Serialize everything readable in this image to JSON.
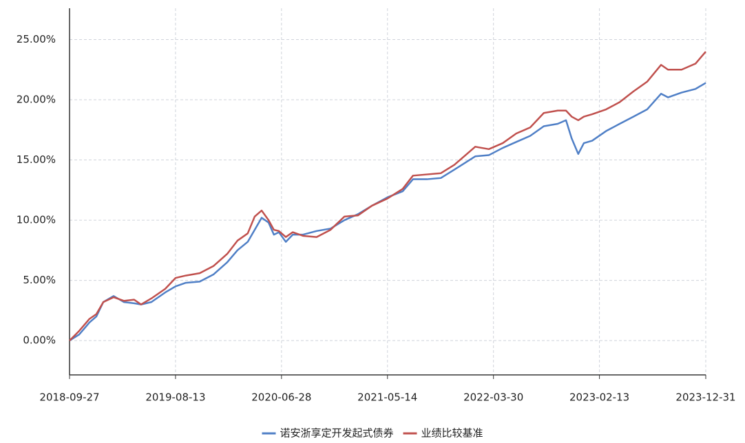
{
  "chart_data": {
    "type": "line",
    "x": [
      "2018-09-27",
      "2018-10-26",
      "2018-11-26",
      "2018-12-17",
      "2019-01-07",
      "2019-02-07",
      "2019-03-10",
      "2019-04-10",
      "2019-05-01",
      "2019-06-01",
      "2019-07-13",
      "2019-08-13",
      "2019-09-13",
      "2019-10-25",
      "2019-12-06",
      "2020-01-16",
      "2020-02-16",
      "2020-03-18",
      "2020-04-08",
      "2020-04-29",
      "2020-05-20",
      "2020-06-05",
      "2020-06-20",
      "2020-07-11",
      "2020-08-01",
      "2020-09-01",
      "2020-10-12",
      "2020-11-23",
      "2021-01-04",
      "2021-02-14",
      "2021-03-28",
      "2021-05-14",
      "2021-06-29",
      "2021-07-30",
      "2021-09-10",
      "2021-10-22",
      "2021-12-02",
      "2022-02-03",
      "2022-03-16",
      "2022-04-27",
      "2022-06-07",
      "2022-07-19",
      "2022-08-29",
      "2022-10-10",
      "2022-11-04",
      "2022-11-21",
      "2022-12-11",
      "2022-12-28",
      "2023-01-22",
      "2023-03-05",
      "2023-04-15",
      "2023-05-27",
      "2023-07-07",
      "2023-08-18",
      "2023-09-08",
      "2023-10-19",
      "2023-11-30",
      "2023-12-31"
    ],
    "series": [
      {
        "name": "诺安浙享定开发起式债券",
        "color": "#4f7fc6",
        "values": [
          0,
          0.5,
          1.5,
          2.0,
          3.2,
          3.7,
          3.2,
          3.1,
          3.0,
          3.2,
          4.0,
          4.5,
          4.8,
          4.9,
          5.5,
          6.5,
          7.5,
          8.2,
          9.2,
          10.2,
          9.8,
          8.8,
          9.0,
          8.2,
          8.8,
          8.8,
          9.1,
          9.3,
          10.0,
          10.5,
          11.2,
          11.9,
          12.4,
          13.4,
          13.4,
          13.5,
          14.2,
          15.3,
          15.4,
          16.0,
          16.5,
          17.0,
          17.8,
          18.0,
          18.3,
          16.8,
          15.5,
          16.4,
          16.6,
          17.4,
          18.0,
          18.6,
          19.2,
          20.5,
          20.2,
          20.6,
          20.9,
          21.4
        ]
      },
      {
        "name": "业绩比较基准",
        "color": "#c0504d",
        "values": [
          0,
          0.8,
          1.8,
          2.2,
          3.2,
          3.6,
          3.3,
          3.4,
          3.0,
          3.5,
          4.3,
          5.2,
          5.4,
          5.6,
          6.2,
          7.2,
          8.3,
          8.9,
          10.3,
          10.8,
          10.0,
          9.2,
          9.1,
          8.6,
          9.0,
          8.7,
          8.6,
          9.2,
          10.3,
          10.4,
          11.2,
          11.8,
          12.6,
          13.7,
          13.8,
          13.9,
          14.6,
          16.1,
          15.9,
          16.4,
          17.2,
          17.7,
          18.9,
          19.1,
          19.1,
          18.6,
          18.3,
          18.6,
          18.8,
          19.2,
          19.8,
          20.7,
          21.5,
          22.9,
          22.5,
          22.5,
          23.0,
          24.0
        ]
      }
    ],
    "xlim": [
      "2018-09-27",
      "2023-12-31"
    ],
    "xticks": [
      "2018-09-27",
      "2019-08-13",
      "2020-06-28",
      "2021-05-14",
      "2022-03-30",
      "2023-02-13",
      "2023-12-31"
    ],
    "ylim": [
      -2.85,
      27.6
    ],
    "yticks": [
      {
        "value": 0,
        "label": "0.00%"
      },
      {
        "value": 5,
        "label": "5.00%"
      },
      {
        "value": 10,
        "label": "10.00%"
      },
      {
        "value": 15,
        "label": "15.00%"
      },
      {
        "value": 20,
        "label": "20.00%"
      },
      {
        "value": 25,
        "label": "25.00%"
      }
    ],
    "grid": true,
    "legend": "bottom"
  }
}
